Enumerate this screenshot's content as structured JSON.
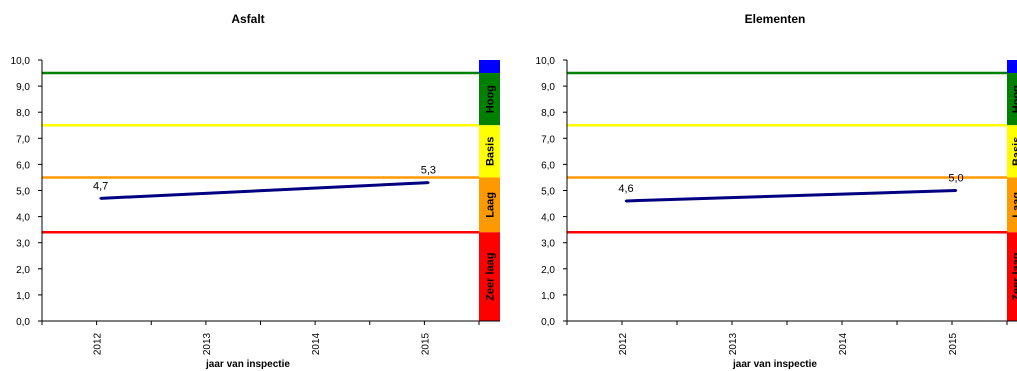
{
  "chart_data": [
    {
      "type": "line",
      "title": "Asfalt",
      "xlabel": "jaar van inspectie",
      "ylabel": "",
      "ylim": [
        0,
        10
      ],
      "yticks": [
        "0,0",
        "1,0",
        "2,0",
        "3,0",
        "4,0",
        "5,0",
        "6,0",
        "7,0",
        "8,0",
        "9,0",
        "10,0"
      ],
      "categories": [
        "2012",
        "2013",
        "2014",
        "2015"
      ],
      "series": [
        {
          "name": "",
          "x": [
            2012,
            2015
          ],
          "values": [
            4.7,
            5.3
          ],
          "labels": [
            "4,7",
            "5,3"
          ],
          "color": "#000080"
        }
      ],
      "thresholds": [
        {
          "value": 9.5,
          "color": "#008000"
        },
        {
          "value": 7.5,
          "color": "#FFFF00"
        },
        {
          "value": 5.5,
          "color": "#FF9900"
        },
        {
          "value": 3.4,
          "color": "#FF0000"
        }
      ],
      "bands": [
        {
          "label": "",
          "from": 9.5,
          "to": 10,
          "color": "#0000FF"
        },
        {
          "label": "Hoog",
          "from": 7.5,
          "to": 9.5,
          "color": "#008000"
        },
        {
          "label": "Basis",
          "from": 5.5,
          "to": 7.5,
          "color": "#FFFF00"
        },
        {
          "label": "Laag",
          "from": 3.4,
          "to": 5.5,
          "color": "#FF9900"
        },
        {
          "label": "Zeer laag",
          "from": 0,
          "to": 3.4,
          "color": "#FF0000"
        }
      ],
      "grid": false,
      "legend": "none"
    },
    {
      "type": "line",
      "title": "Elementen",
      "xlabel": "jaar van inspectie",
      "ylabel": "",
      "ylim": [
        0,
        10
      ],
      "yticks": [
        "0,0",
        "1,0",
        "2,0",
        "3,0",
        "4,0",
        "5,0",
        "6,0",
        "7,0",
        "8,0",
        "9,0",
        "10,0"
      ],
      "categories": [
        "2012",
        "2013",
        "2014",
        "2015"
      ],
      "series": [
        {
          "name": "",
          "x": [
            2012,
            2015
          ],
          "values": [
            4.6,
            5.0
          ],
          "labels": [
            "4,6",
            "5,0"
          ],
          "color": "#000080"
        }
      ],
      "thresholds": [
        {
          "value": 9.5,
          "color": "#008000"
        },
        {
          "value": 7.5,
          "color": "#FFFF00"
        },
        {
          "value": 5.5,
          "color": "#FF9900"
        },
        {
          "value": 3.4,
          "color": "#FF0000"
        }
      ],
      "bands": [
        {
          "label": "",
          "from": 9.5,
          "to": 10,
          "color": "#0000FF"
        },
        {
          "label": "Hoog",
          "from": 7.5,
          "to": 9.5,
          "color": "#008000"
        },
        {
          "label": "Basis",
          "from": 5.5,
          "to": 7.5,
          "color": "#FFFF00"
        },
        {
          "label": "Laag",
          "from": 3.4,
          "to": 5.5,
          "color": "#FF9900"
        },
        {
          "label": "Zeer laag",
          "from": 0,
          "to": 3.4,
          "color": "#FF0000"
        }
      ],
      "grid": false,
      "legend": "none"
    }
  ]
}
